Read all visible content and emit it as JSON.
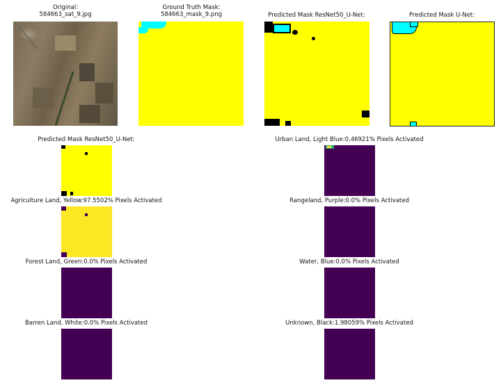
{
  "top_row": [
    {
      "title_line1": "Original:",
      "title_line2": "584663_sat_9.jpg"
    },
    {
      "title_line1": "Ground Truth Mask:",
      "title_line2": "584663_mask_9.png"
    },
    {
      "title_line1": "Predicted Mask ResNet50_U-Net:",
      "title_line2": ""
    },
    {
      "title_line1": "Predicted Mask U-Net:",
      "title_line2": ""
    }
  ],
  "left_column": [
    {
      "title": "Predicted Mask ResNet50_U-Net:"
    },
    {
      "title": "Agriculture Land, Yellow:97.5502% Pixels Activated"
    },
    {
      "title": "Forest Land, Green:0.0% Pixels Activated"
    },
    {
      "title": "Barren Land, White:0.0% Pixels Activated"
    }
  ],
  "right_column": [
    {
      "title": "Urban Land, Light Blue:0.46921% Pixels Activated"
    },
    {
      "title": "Rangeland, Purple:0.0% Pixels Activated"
    },
    {
      "title": "Water, Blue:0.0% Pixels Activated"
    },
    {
      "title": "Unknown, Black:1.98059% Pixels Activated"
    }
  ],
  "colors": {
    "yellow": "#ffff00",
    "cyan": "#00ffff",
    "viridis_purple": "#440154",
    "viridis_yellow": "#fde725"
  }
}
